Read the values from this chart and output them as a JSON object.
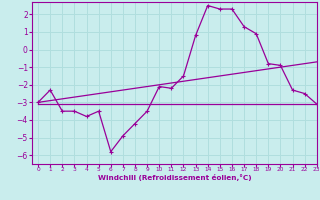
{
  "xlabel": "Windchill (Refroidissement éolien,°C)",
  "xlim": [
    -0.5,
    23
  ],
  "ylim": [
    -6.5,
    2.7
  ],
  "yticks": [
    2,
    1,
    0,
    -1,
    -2,
    -3,
    -4,
    -5,
    -6
  ],
  "xticks": [
    0,
    1,
    2,
    3,
    4,
    5,
    6,
    7,
    8,
    9,
    10,
    11,
    12,
    13,
    14,
    15,
    16,
    17,
    18,
    19,
    20,
    21,
    22,
    23
  ],
  "bg_color": "#c9eded",
  "grid_color": "#b0dede",
  "line_color": "#990099",
  "main_x": [
    0,
    1,
    2,
    3,
    4,
    5,
    6,
    7,
    8,
    9,
    10,
    11,
    12,
    13,
    14,
    15,
    16,
    17,
    18,
    19,
    20,
    21,
    22,
    23
  ],
  "main_y": [
    -3.0,
    -2.3,
    -3.5,
    -3.5,
    -3.8,
    -3.5,
    -5.8,
    -4.9,
    -4.2,
    -3.5,
    -2.1,
    -2.2,
    -1.5,
    0.8,
    2.5,
    2.3,
    2.3,
    1.3,
    0.9,
    -0.8,
    -0.9,
    -2.3,
    -2.5,
    -3.1
  ],
  "trend1_x": [
    0,
    23
  ],
  "trend1_y": [
    -3.0,
    -0.7
  ],
  "trend2_x": [
    0,
    23
  ],
  "trend2_y": [
    -3.1,
    -3.1
  ],
  "marker": "+"
}
